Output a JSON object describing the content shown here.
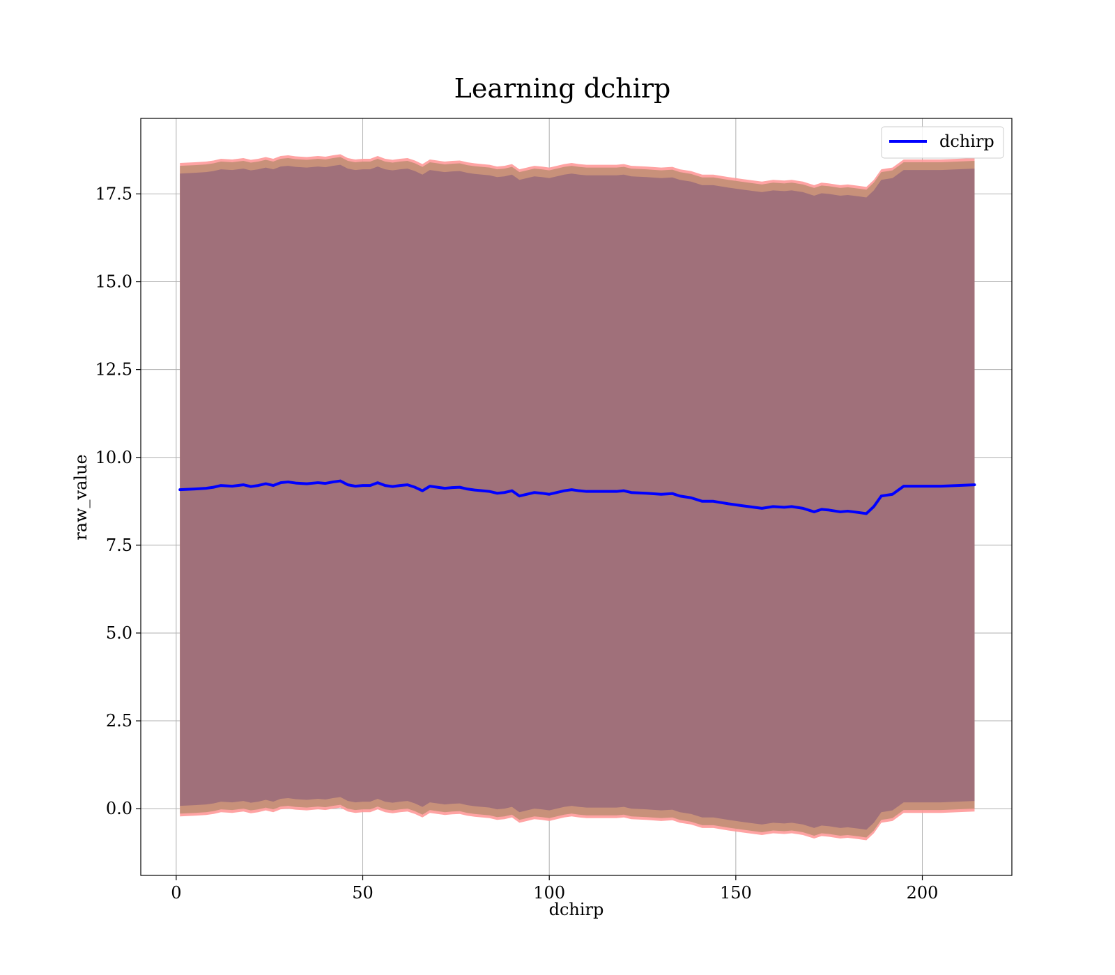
{
  "chart_data": {
    "type": "line",
    "title": "Learning dchirp",
    "xlabel": "dchirp",
    "ylabel": "raw_value",
    "xlim": [
      -9.5,
      224
    ],
    "ylim": [
      -1.9,
      19.65
    ],
    "xticks": [
      0,
      50,
      100,
      150,
      200
    ],
    "xtick_labels": [
      "0",
      "50",
      "100",
      "150",
      "200"
    ],
    "yticks": [
      0.0,
      2.5,
      5.0,
      7.5,
      10.0,
      12.5,
      15.0,
      17.5
    ],
    "ytick_labels": [
      "0.0",
      "2.5",
      "5.0",
      "7.5",
      "10.0",
      "12.5",
      "15.0",
      "17.5"
    ],
    "grid": true,
    "legend_position": "top-right",
    "colors": {
      "line": "#0000ff",
      "band_outer": "#ff9999",
      "band_mid": "#c8917a",
      "band_inner": "#a0707a"
    },
    "series": [
      {
        "name": "dchirp",
        "x": [
          1,
          5,
          8,
          10,
          12,
          15,
          18,
          20,
          22,
          24,
          26,
          28,
          30,
          32,
          35,
          38,
          40,
          42,
          44,
          46,
          48,
          50,
          52,
          54,
          56,
          58,
          60,
          62,
          64,
          66,
          68,
          70,
          72,
          74,
          76,
          78,
          80,
          82,
          84,
          86,
          88,
          90,
          92,
          94,
          96,
          98,
          100,
          102,
          104,
          106,
          108,
          110,
          114,
          118,
          120,
          122,
          126,
          130,
          133,
          135,
          138,
          141,
          144,
          148,
          152,
          157,
          160,
          163,
          165,
          168,
          171,
          173,
          175,
          178,
          180,
          183,
          185,
          187,
          189,
          192,
          195,
          200,
          205,
          214
        ],
        "y": [
          9.08,
          9.1,
          9.12,
          9.15,
          9.2,
          9.18,
          9.22,
          9.17,
          9.2,
          9.25,
          9.2,
          9.28,
          9.3,
          9.27,
          9.25,
          9.28,
          9.26,
          9.3,
          9.33,
          9.22,
          9.18,
          9.2,
          9.2,
          9.28,
          9.2,
          9.17,
          9.2,
          9.22,
          9.15,
          9.05,
          9.18,
          9.15,
          9.12,
          9.14,
          9.15,
          9.1,
          9.07,
          9.05,
          9.03,
          8.98,
          9.0,
          9.05,
          8.9,
          8.95,
          9.0,
          8.98,
          8.95,
          9.0,
          9.05,
          9.08,
          9.05,
          9.03,
          9.03,
          9.03,
          9.05,
          9.0,
          8.98,
          8.95,
          8.97,
          8.9,
          8.85,
          8.75,
          8.75,
          8.68,
          8.62,
          8.55,
          8.6,
          8.58,
          8.6,
          8.55,
          8.45,
          8.52,
          8.5,
          8.45,
          8.47,
          8.43,
          8.4,
          8.6,
          8.9,
          8.95,
          9.18,
          9.18,
          9.18,
          9.22
        ]
      }
    ]
  },
  "legend": {
    "label": "dchirp"
  }
}
